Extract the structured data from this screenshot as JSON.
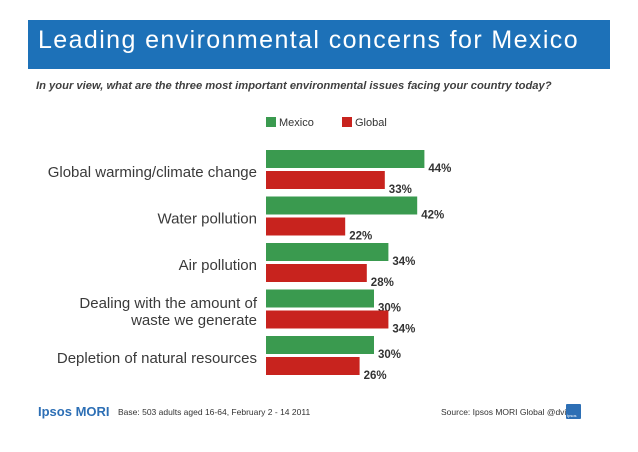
{
  "header": {
    "title": "Leading environmental concerns for Mexico"
  },
  "chart_data": {
    "type": "bar",
    "orientation": "horizontal",
    "title": "Leading environmental concerns for Mexico",
    "subtitle": "In your view, what are the three most important environmental issues facing your country today?",
    "categories": [
      "Global warming/climate change",
      "Water pollution",
      "Air pollution",
      "Dealing with the amount of waste we generate",
      "Depletion of natural resources"
    ],
    "category_lines": [
      [
        "Global warming/climate change"
      ],
      [
        "Water pollution"
      ],
      [
        "Air pollution"
      ],
      [
        "Dealing with the amount of",
        "waste we generate"
      ],
      [
        "Depletion of natural resources"
      ]
    ],
    "series": [
      {
        "name": "Mexico",
        "color": "#3a9a4f",
        "values": [
          44,
          42,
          34,
          30,
          30
        ],
        "labels": [
          "44%",
          "42%",
          "34%",
          "30%",
          "30%"
        ]
      },
      {
        "name": "Global",
        "color": "#c8231e",
        "values": [
          33,
          22,
          28,
          34,
          26
        ],
        "labels": [
          "33%",
          "22%",
          "28%",
          "34%",
          "26%"
        ]
      }
    ],
    "xlim": [
      0,
      50
    ],
    "xlabel": "",
    "ylabel": "",
    "legend": "top"
  },
  "footer": {
    "logo": "Ipsos MORI",
    "base": "Base: 503 adults aged 16-64, February 2 - 14 2011",
    "source": "Source: Ipsos MORI Global @dvisor",
    "badge": "Ipsos"
  }
}
